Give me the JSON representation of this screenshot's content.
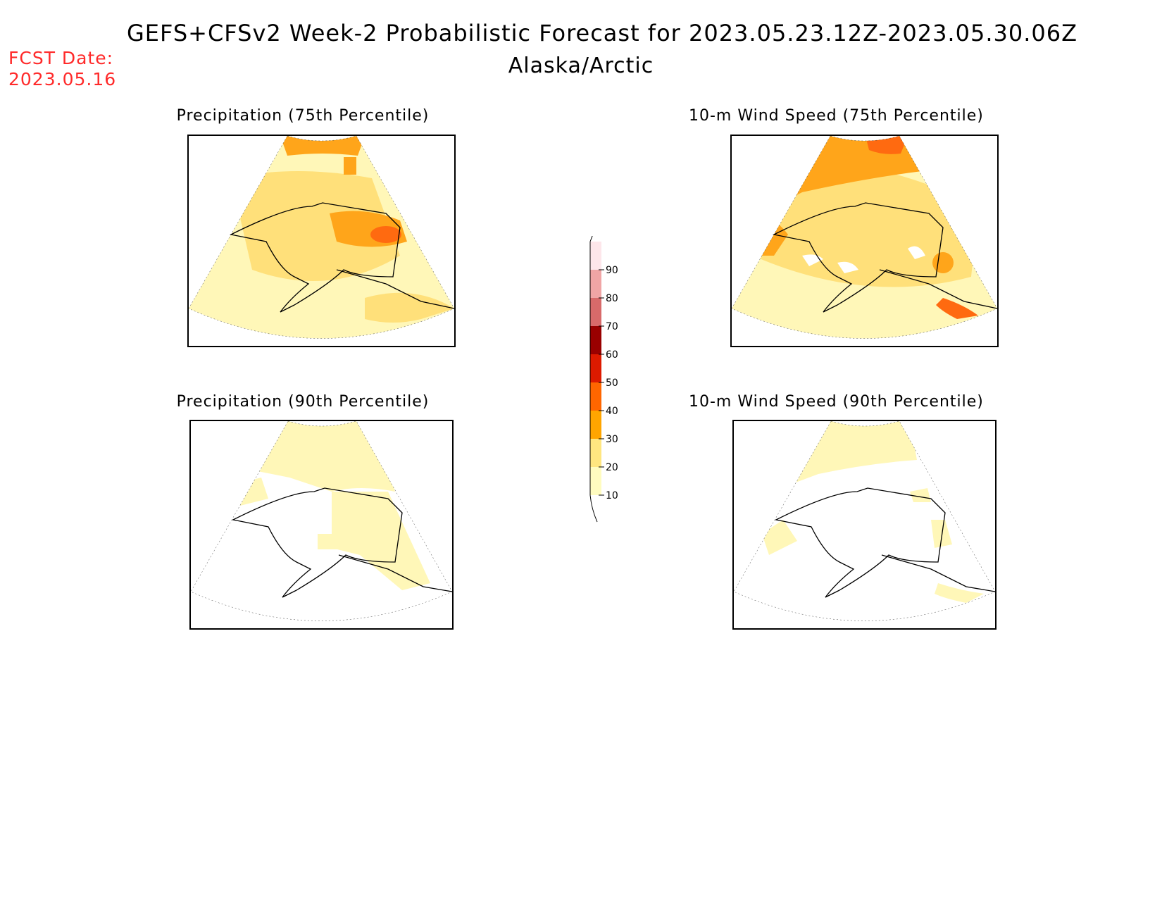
{
  "header": {
    "title": "GEFS+CFSv2 Week-2 Probabilistic Forecast for 2023.05.23.12Z-2023.05.30.06Z",
    "subtitle": "Alaska/Arctic",
    "fcst_label": "FCST Date:",
    "fcst_date": "2023.05.16"
  },
  "panels": [
    {
      "title": "Precipitation (75th Percentile)",
      "fill_level": "20-30 predominant, 30-40 interior"
    },
    {
      "title": "10-m Wind Speed (75th Percentile)",
      "fill_level": "20-30 predominant, 30-40 north"
    },
    {
      "title": "Precipitation (90th Percentile)",
      "fill_level": "10-20 north/east, white south-west"
    },
    {
      "title": "10-m Wind Speed (90th Percentile)",
      "fill_level": "mostly white, scattered 10-20"
    }
  ],
  "legend": {
    "levels": [
      "10",
      "20",
      "30",
      "40",
      "50",
      "60",
      "70",
      "80",
      "90"
    ],
    "colors": [
      "#fffcc0",
      "#ffe680",
      "#ffa500",
      "#ff6600",
      "#dd1a00",
      "#990000",
      "#d86a6a",
      "#f0a5a5",
      "#fde6ea"
    ]
  }
}
